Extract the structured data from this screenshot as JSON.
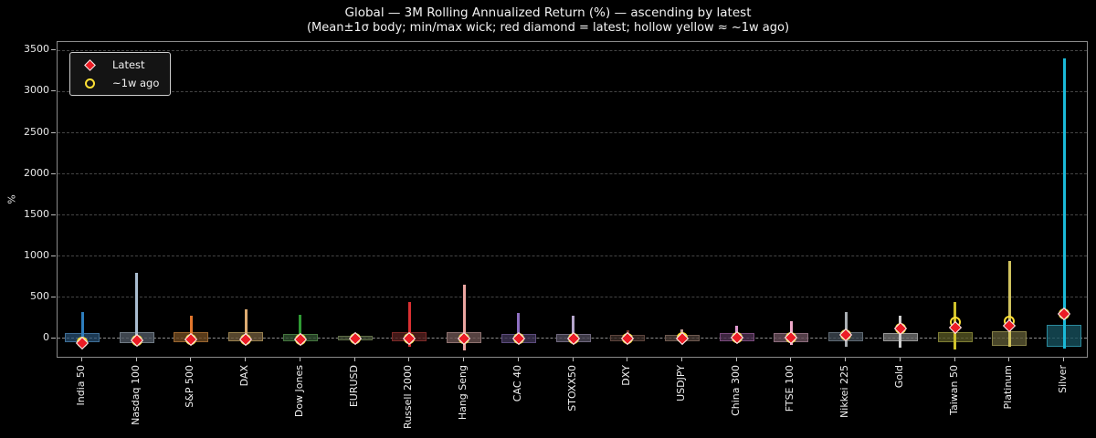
{
  "colors": {
    "background": "#000000",
    "frame": "#8a8a8a",
    "grid": "#454545",
    "zero_line": "#8f8f8f",
    "text": "#f0f0f0",
    "latest_marker": "#ec1c24",
    "week_ago_marker": "#ffe135"
  },
  "chart_data": {
    "type": "box-wick",
    "title": "Global — 3M Rolling Annualized Return (%) — ascending by latest",
    "subtitle": "(Mean±1σ body; min/max wick; red diamond = latest; hollow yellow ≈ ~1w ago)",
    "ylabel": "%",
    "yticks": [
      0,
      500,
      1000,
      1500,
      2000,
      2500,
      3000,
      3500
    ],
    "ylim": [
      -244,
      3604
    ],
    "grid": "horizontal-dashed",
    "legend": {
      "position": "upper-left",
      "items": [
        {
          "label": "Latest",
          "marker": "red-diamond",
          "color": "#ec1c24"
        },
        {
          "label": "~1w ago",
          "marker": "hollow-yellow-circle",
          "color": "#ffe135"
        }
      ]
    },
    "series": [
      {
        "name": "India 50",
        "min": -80,
        "max": 320,
        "body_low": -48,
        "body_high": 63,
        "latest": -55,
        "week_ago": -45,
        "wick_color": "#2d7dbd",
        "box_edge": "#3f6e96",
        "box_fill": "#2a5378b3"
      },
      {
        "name": "Nasdaq 100",
        "min": -90,
        "max": 800,
        "body_low": -55,
        "body_high": 75,
        "latest": -25,
        "week_ago": -20,
        "wick_color": "#aabdd0",
        "box_edge": "#707a84",
        "box_fill": "#4d5662cc"
      },
      {
        "name": "S&P 500",
        "min": -60,
        "max": 280,
        "body_low": -40,
        "body_high": 78,
        "latest": -15,
        "week_ago": -12,
        "wick_color": "#e2762c",
        "box_edge": "#9a6630",
        "box_fill": "#6f4a20cc"
      },
      {
        "name": "DAX",
        "min": -70,
        "max": 355,
        "body_low": -35,
        "body_high": 78,
        "latest": -10,
        "week_ago": -8,
        "wick_color": "#ddab72",
        "box_edge": "#97804f",
        "box_fill": "#6b573acc"
      },
      {
        "name": "Dow Jones",
        "min": -50,
        "max": 290,
        "body_low": -28,
        "body_high": 55,
        "latest": -8,
        "week_ago": -6,
        "wick_color": "#2f9a33",
        "box_edge": "#45763f",
        "box_fill": "#2e4f2ecc"
      },
      {
        "name": "EURUSD",
        "min": -40,
        "max": 45,
        "body_low": -25,
        "body_high": 37,
        "latest": -5,
        "week_ago": -4,
        "wick_color": "#64734b",
        "box_edge": "#5e6c47",
        "box_fill": "#3c4730cc"
      },
      {
        "name": "Russell 2000",
        "min": -100,
        "max": 445,
        "body_low": -37,
        "body_high": 74,
        "latest": -3,
        "week_ago": 0,
        "wick_color": "#d93032",
        "box_edge": "#7c2a28",
        "box_fill": "#521f1ecc"
      },
      {
        "name": "Hang Seng",
        "min": -148,
        "max": 650,
        "body_low": -56,
        "body_high": 81,
        "latest": -2,
        "week_ago": 0,
        "wick_color": "#eba6a1",
        "box_edge": "#8e7270",
        "box_fill": "#6b5351cc"
      },
      {
        "name": "CAC 40",
        "min": -60,
        "max": 315,
        "body_low": -52,
        "body_high": 59,
        "latest": 0,
        "week_ago": 2,
        "wick_color": "#8e6fc2",
        "box_edge": "#5c4b7c",
        "box_fill": "#3d3354cc"
      },
      {
        "name": "STOXX50",
        "min": -55,
        "max": 275,
        "body_low": -41,
        "body_high": 55,
        "latest": 2,
        "week_ago": 4,
        "wick_color": "#b5a6cc",
        "box_edge": "#6f687e",
        "box_fill": "#4c4757cc"
      },
      {
        "name": "DXY",
        "min": -40,
        "max": 100,
        "body_low": -37,
        "body_high": 48,
        "latest": 3,
        "week_ago": 5,
        "wick_color": "#7c3a33",
        "box_edge": "#5c443c",
        "box_fill": "#392b26cc"
      },
      {
        "name": "USDJPY",
        "min": -35,
        "max": 110,
        "body_low": -30,
        "body_high": 45,
        "latest": 5,
        "week_ago": 6,
        "wick_color": "#c8a29b",
        "box_edge": "#6d594f",
        "box_fill": "#483b34cc"
      },
      {
        "name": "China 300",
        "min": -50,
        "max": 150,
        "body_low": -33,
        "body_high": 61,
        "latest": 8,
        "week_ago": 10,
        "wick_color": "#df99cf",
        "box_edge": "#794a7c",
        "box_fill": "#4c3050cc"
      },
      {
        "name": "FTSE 100",
        "min": -78,
        "max": 215,
        "body_low": -39,
        "body_high": 72,
        "latest": 15,
        "week_ago": 16,
        "wick_color": "#efa9c9",
        "box_edge": "#8c6d7d",
        "box_fill": "#684d5acc"
      },
      {
        "name": "Nikkei 225",
        "min": -100,
        "max": 325,
        "body_low": -33,
        "body_high": 78,
        "latest": 40,
        "week_ago": 42,
        "wick_color": "#a8aeb3",
        "box_edge": "#5e6973",
        "box_fill": "#3d4751cc"
      },
      {
        "name": "Gold",
        "min": -111,
        "max": 280,
        "body_low": -30,
        "body_high": 63,
        "latest": 119,
        "week_ago": 120,
        "wick_color": "#cfcfcf",
        "box_edge": "#989898",
        "box_fill": "#6d6d6dcc"
      },
      {
        "name": "Taiwan 50",
        "min": -130,
        "max": 440,
        "body_low": -48,
        "body_high": 74,
        "latest": 137,
        "week_ago": 203,
        "wick_color": "#cfc22b",
        "box_edge": "#7d7d33",
        "box_fill": "#555523cc"
      },
      {
        "name": "Platinum",
        "min": -103,
        "max": 940,
        "body_low": -85,
        "body_high": 92,
        "latest": 155,
        "week_ago": 210,
        "wick_color": "#cfc25e",
        "box_edge": "#868048",
        "box_fill": "#5b5733cc"
      },
      {
        "name": "Silver",
        "min": -120,
        "max": 3400,
        "body_low": -103,
        "body_high": 167,
        "latest": 296,
        "week_ago": 300,
        "wick_color": "#1ab9d8",
        "box_edge": "#2b8a9d",
        "box_fill": "#17505ccc"
      }
    ]
  }
}
